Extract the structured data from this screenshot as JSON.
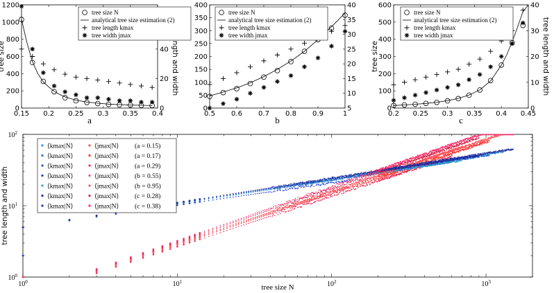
{
  "chart_data": [
    {
      "type": "scatter",
      "panel_label": "a",
      "xlim": [
        0.15,
        0.4
      ],
      "xticks": [
        0.15,
        0.2,
        0.25,
        0.3,
        0.35,
        0.4
      ],
      "ylim_left": [
        0,
        1200
      ],
      "yticks_left": [
        0,
        200,
        400,
        600,
        800,
        1000,
        1200
      ],
      "ylim_right": [
        0,
        70
      ],
      "yticks_right": [
        0,
        20,
        40,
        60
      ],
      "ylabel_left": "tree size",
      "ylabel_right": "tree length and width",
      "legend": [
        "tree size N",
        "analytical tree size estimation (2)",
        "tree length kmax",
        "tree width jmax"
      ],
      "x": [
        0.15,
        0.17,
        0.19,
        0.21,
        0.23,
        0.25,
        0.27,
        0.29,
        0.31,
        0.33,
        0.35,
        0.37,
        0.39
      ],
      "tree_size": [
        1030,
        530,
        310,
        190,
        120,
        85,
        65,
        52,
        43,
        38,
        34,
        31,
        29
      ],
      "analytical": {
        "x": [
          0.15,
          0.16,
          0.17,
          0.18,
          0.19,
          0.2,
          0.21,
          0.22,
          0.23,
          0.25,
          0.27,
          0.29,
          0.31,
          0.33,
          0.35,
          0.37,
          0.39
        ],
        "y": [
          1030,
          760,
          540,
          400,
          305,
          245,
          195,
          158,
          130,
          92,
          70,
          56,
          46,
          40,
          35,
          32,
          29
        ]
      },
      "tree_length": [
        40,
        35,
        30,
        26,
        23,
        21,
        20,
        19,
        18,
        17,
        16,
        15,
        14
      ],
      "tree_width": [
        69,
        40,
        24,
        15,
        11,
        9,
        7,
        7,
        6,
        5,
        5,
        4,
        4
      ]
    },
    {
      "type": "scatter",
      "panel_label": "b",
      "xlim": [
        0.5,
        1.0
      ],
      "xticks": [
        0.5,
        0.6,
        0.7,
        0.8,
        0.9,
        1.0
      ],
      "ylim_left": [
        0,
        400
      ],
      "yticks_left": [
        0,
        50,
        100,
        150,
        200,
        250,
        300,
        350,
        400
      ],
      "ylim_right": [
        5,
        40
      ],
      "yticks_right": [
        5,
        10,
        15,
        20,
        25,
        30,
        35,
        40
      ],
      "ylabel_left": "",
      "ylabel_right": "",
      "legend": [
        "tree size N",
        "analytical tree size estimation (2)",
        "tree length kmax",
        "tree width jmax"
      ],
      "x": [
        0.5,
        0.55,
        0.6,
        0.65,
        0.7,
        0.75,
        0.8,
        0.85,
        0.9,
        0.95,
        1.0
      ],
      "tree_size": [
        45,
        60,
        75,
        95,
        120,
        145,
        180,
        220,
        265,
        310,
        360
      ],
      "analytical": {
        "x": [
          0.5,
          0.55,
          0.6,
          0.65,
          0.7,
          0.75,
          0.8,
          0.85,
          0.9,
          0.95,
          1.0
        ],
        "y": [
          47,
          62,
          78,
          98,
          122,
          150,
          182,
          220,
          265,
          315,
          368
        ]
      },
      "tree_length": [
        13,
        15,
        17,
        19,
        21,
        23,
        25,
        27,
        29,
        31,
        33
      ],
      "tree_width": [
        5,
        6.5,
        8,
        10,
        12,
        14,
        16,
        19,
        22,
        26,
        31
      ]
    },
    {
      "type": "scatter",
      "panel_label": "c",
      "xlim": [
        0.2,
        0.45
      ],
      "xticks": [
        0.2,
        0.25,
        0.3,
        0.35,
        0.4,
        0.45
      ],
      "ylim_left": [
        0,
        600
      ],
      "yticks_left": [
        0,
        100,
        200,
        300,
        400,
        500,
        600
      ],
      "ylim_right": [
        0,
        40
      ],
      "yticks_right": [
        0,
        10,
        20,
        30,
        40
      ],
      "ylabel_left": "tree size",
      "ylabel_right": "tree length and width",
      "legend": [
        "tree size N",
        "analytical tree size estimation (2)",
        "tree length kmax",
        "tree width jmax"
      ],
      "x": [
        0.2,
        0.22,
        0.24,
        0.26,
        0.28,
        0.3,
        0.32,
        0.34,
        0.36,
        0.38,
        0.4,
        0.42,
        0.44
      ],
      "tree_size": [
        15,
        18,
        22,
        27,
        33,
        42,
        55,
        75,
        105,
        160,
        250,
        380,
        480
      ],
      "analytical": {
        "x": [
          0.2,
          0.22,
          0.24,
          0.26,
          0.28,
          0.3,
          0.32,
          0.34,
          0.36,
          0.38,
          0.4,
          0.41,
          0.42,
          0.43,
          0.44,
          0.45
        ],
        "y": [
          15,
          18,
          22,
          27,
          34,
          43,
          56,
          76,
          106,
          158,
          250,
          310,
          385,
          470,
          560,
          600
        ]
      },
      "tree_length": [
        9,
        10,
        11,
        12,
        13,
        14,
        15,
        17,
        19,
        22,
        26,
        30,
        38
      ],
      "tree_width": [
        3,
        4,
        5,
        6,
        7,
        8,
        9,
        11,
        13,
        16,
        20,
        25,
        33
      ]
    },
    {
      "type": "scatter",
      "xscale": "log",
      "yscale": "log",
      "xlim": [
        1,
        2000
      ],
      "xticks": [
        1,
        10,
        100,
        1000
      ],
      "ylim": [
        1,
        100
      ],
      "yticks": [
        1,
        10,
        100
      ],
      "xlabel": "tree size N",
      "ylabel": "tree length and width",
      "legend_k_label": "⟨kmax|N⟩",
      "legend_j_label": "⟨jmax|N⟩",
      "series": [
        {
          "param": "(a = 0.15)",
          "group": "a",
          "k_coef": 5.0,
          "k_exp": 0.34,
          "k_nmax": 1300,
          "j_coef": 0.55,
          "j_exp": 0.73,
          "j_nmax": 1300,
          "color_k": "#3d8fd8",
          "color_j": "#ff4b4b"
        },
        {
          "param": "(a = 0.17)",
          "group": "a",
          "k_coef": 5.0,
          "k_exp": 0.335,
          "k_nmax": 1050,
          "j_coef": 0.54,
          "j_exp": 0.72,
          "j_nmax": 1050,
          "color_k": "#2f6fd6",
          "color_j": "#ff3030"
        },
        {
          "param": "(a = 0.29)",
          "group": "a",
          "k_coef": 5.0,
          "k_exp": 0.33,
          "k_nmax": 600,
          "j_coef": 0.52,
          "j_exp": 0.71,
          "j_nmax": 600,
          "color_k": "#2a55d0",
          "color_j": "#ee2d55"
        },
        {
          "param": "(b = 0.55)",
          "group": "b",
          "k_coef": 5.0,
          "k_exp": 0.31,
          "k_nmax": 130,
          "j_coef": 0.6,
          "j_exp": 0.7,
          "j_nmax": 130,
          "color_k": "#1a3ccf",
          "color_j": "#f04a6e"
        },
        {
          "param": "(b = 0.95)",
          "group": "b",
          "k_coef": 5.0,
          "k_exp": 0.33,
          "k_nmax": 700,
          "j_coef": 0.53,
          "j_exp": 0.74,
          "j_nmax": 700,
          "color_k": "#33a0c8",
          "color_j": "#ff5560"
        },
        {
          "param": "(c = 0.28)",
          "group": "c",
          "k_coef": 5.0,
          "k_exp": 0.34,
          "k_nmax": 900,
          "j_coef": 0.55,
          "j_exp": 0.75,
          "j_nmax": 900,
          "color_k": "#1c2aa8",
          "color_j": "#d8224a"
        },
        {
          "param": "(c = 0.38)",
          "group": "c",
          "k_coef": 5.0,
          "k_exp": 0.345,
          "k_nmax": 1500,
          "j_coef": 0.56,
          "j_exp": 0.76,
          "j_nmax": 1500,
          "color_k": "#23339a",
          "color_j": "#ff2a6a"
        }
      ]
    }
  ]
}
